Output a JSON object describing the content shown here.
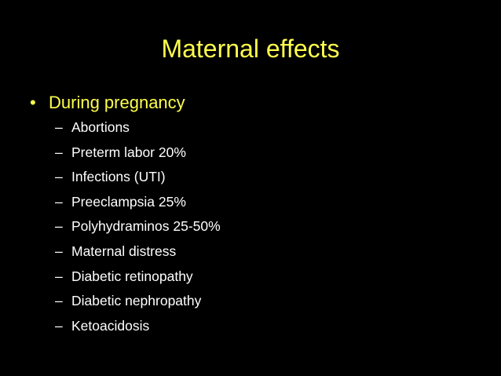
{
  "title": "Maternal effects",
  "bullet": {
    "text": "During pregnancy",
    "items": [
      "Abortions",
      "Preterm labor 20%",
      "Infections (UTI)",
      "Preeclampsia 25%",
      "Polyhydraminos 25-50%",
      "Maternal distress",
      "Diabetic retinopathy",
      "Diabetic nephropathy",
      "Ketoacidosis"
    ]
  }
}
